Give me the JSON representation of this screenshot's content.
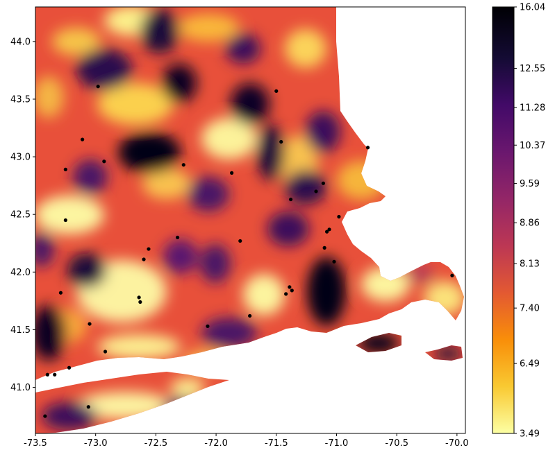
{
  "chart_data": {
    "type": "heatmap",
    "title": "",
    "xlabel": "",
    "ylabel": "",
    "xlim": [
      -73.5,
      -69.93
    ],
    "ylim": [
      40.6,
      44.3
    ],
    "x_ticks": [
      -73.5,
      -73.0,
      -72.5,
      -72.0,
      -71.5,
      -71.0,
      -70.5,
      -70.0
    ],
    "y_ticks": [
      41.0,
      41.5,
      42.0,
      42.5,
      43.0,
      43.5,
      44.0
    ],
    "grid": false,
    "colormap": "inferno_r",
    "colorbar": {
      "min": 3.49,
      "max": 16.04,
      "tick_labels": [
        "16.04",
        "12.55",
        "11.28",
        "10.37",
        "9.59",
        "8.86",
        "8.13",
        "7.40",
        "6.49",
        "3.49"
      ],
      "tick_fractions": [
        1.0,
        0.856,
        0.764,
        0.676,
        0.586,
        0.494,
        0.398,
        0.294,
        0.164,
        0.0
      ],
      "colors": [
        "#fcffa4",
        "#f9c932",
        "#f98e09",
        "#e35932",
        "#bc3754",
        "#932667",
        "#6a176e",
        "#420a68",
        "#140b34",
        "#000004"
      ]
    },
    "stations": [
      {
        "lon": -72.98,
        "lat": 43.61
      },
      {
        "lon": -73.11,
        "lat": 43.15
      },
      {
        "lon": -72.93,
        "lat": 42.96
      },
      {
        "lon": -73.25,
        "lat": 42.89
      },
      {
        "lon": -72.27,
        "lat": 42.93
      },
      {
        "lon": -71.87,
        "lat": 42.86
      },
      {
        "lon": -71.5,
        "lat": 43.57
      },
      {
        "lon": -71.46,
        "lat": 43.13
      },
      {
        "lon": -70.74,
        "lat": 43.08
      },
      {
        "lon": -71.17,
        "lat": 42.7
      },
      {
        "lon": -71.11,
        "lat": 42.77
      },
      {
        "lon": -71.38,
        "lat": 42.63
      },
      {
        "lon": -73.25,
        "lat": 42.45
      },
      {
        "lon": -72.32,
        "lat": 42.3
      },
      {
        "lon": -71.8,
        "lat": 42.27
      },
      {
        "lon": -72.56,
        "lat": 42.2
      },
      {
        "lon": -72.6,
        "lat": 42.11
      },
      {
        "lon": -70.98,
        "lat": 42.48
      },
      {
        "lon": -71.08,
        "lat": 42.35
      },
      {
        "lon": -71.06,
        "lat": 42.37
      },
      {
        "lon": -71.1,
        "lat": 42.21
      },
      {
        "lon": -71.02,
        "lat": 42.09
      },
      {
        "lon": -73.29,
        "lat": 41.82
      },
      {
        "lon": -72.64,
        "lat": 41.78
      },
      {
        "lon": -72.63,
        "lat": 41.74
      },
      {
        "lon": -71.39,
        "lat": 41.87
      },
      {
        "lon": -71.37,
        "lat": 41.84
      },
      {
        "lon": -71.42,
        "lat": 41.81
      },
      {
        "lon": -71.72,
        "lat": 41.62
      },
      {
        "lon": -73.05,
        "lat": 41.55
      },
      {
        "lon": -72.07,
        "lat": 41.53
      },
      {
        "lon": -72.92,
        "lat": 41.31
      },
      {
        "lon": -73.22,
        "lat": 41.17
      },
      {
        "lon": -73.4,
        "lat": 41.11
      },
      {
        "lon": -73.34,
        "lat": 41.11
      },
      {
        "lon": -73.06,
        "lat": 40.83
      },
      {
        "lon": -73.42,
        "lat": 40.75
      },
      {
        "lon": -70.04,
        "lat": 41.97
      }
    ]
  }
}
